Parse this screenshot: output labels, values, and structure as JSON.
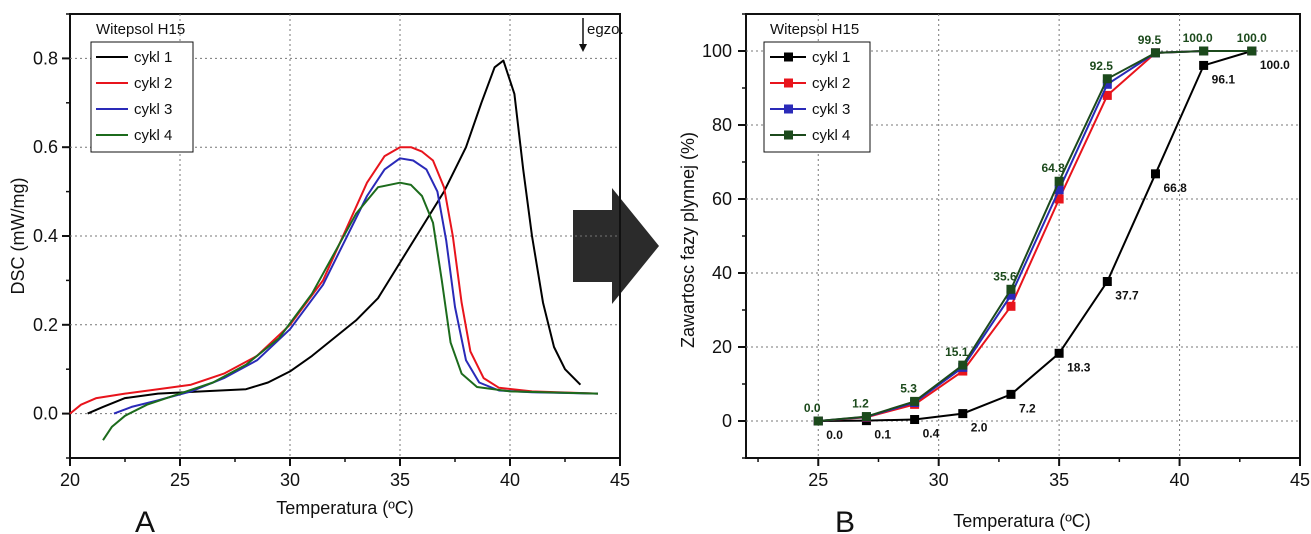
{
  "arrow_color": "#2b2b2b",
  "chart_data": [
    {
      "type": "line",
      "panel_label": "A",
      "xlabel": "Temperatura (ºC)",
      "ylabel": "DSC (mW/mg)",
      "xlim": [
        20,
        45
      ],
      "ylim": [
        -0.1,
        0.9
      ],
      "xticks": [
        "20",
        "25",
        "30",
        "35",
        "40",
        "45"
      ],
      "yticks": [
        "0.0",
        "0.2",
        "0.4",
        "0.6",
        "0.8"
      ],
      "grid": true,
      "legend_title": "Witepsol H15",
      "legend_position": "top-left",
      "annotation": "egzo.",
      "series": [
        {
          "name": "cykl 1",
          "color": "#000000",
          "points": [
            [
              20.8,
              0.0
            ],
            [
              21.5,
              0.015
            ],
            [
              22.5,
              0.035
            ],
            [
              24,
              0.045
            ],
            [
              26,
              0.05
            ],
            [
              28,
              0.055
            ],
            [
              29,
              0.07
            ],
            [
              30,
              0.095
            ],
            [
              31,
              0.13
            ],
            [
              32,
              0.17
            ],
            [
              33,
              0.21
            ],
            [
              34,
              0.26
            ],
            [
              35,
              0.34
            ],
            [
              36,
              0.42
            ],
            [
              37,
              0.5
            ],
            [
              38,
              0.6
            ],
            [
              38.7,
              0.7
            ],
            [
              39.3,
              0.78
            ],
            [
              39.7,
              0.795
            ],
            [
              40,
              0.75
            ],
            [
              40.2,
              0.72
            ],
            [
              40.6,
              0.55
            ],
            [
              41,
              0.4
            ],
            [
              41.5,
              0.25
            ],
            [
              42,
              0.15
            ],
            [
              42.5,
              0.1
            ],
            [
              43.2,
              0.065
            ]
          ]
        },
        {
          "name": "cykl 2",
          "color": "#e8141c",
          "points": [
            [
              20,
              0.0
            ],
            [
              20.5,
              0.02
            ],
            [
              21.2,
              0.035
            ],
            [
              22.5,
              0.045
            ],
            [
              24,
              0.055
            ],
            [
              25.5,
              0.065
            ],
            [
              27,
              0.09
            ],
            [
              28.5,
              0.13
            ],
            [
              30,
              0.2
            ],
            [
              31.5,
              0.3
            ],
            [
              32.5,
              0.41
            ],
            [
              33.5,
              0.52
            ],
            [
              34.3,
              0.58
            ],
            [
              35,
              0.6
            ],
            [
              35.5,
              0.6
            ],
            [
              36,
              0.59
            ],
            [
              36.5,
              0.57
            ],
            [
              37,
              0.51
            ],
            [
              37.4,
              0.4
            ],
            [
              37.8,
              0.25
            ],
            [
              38.2,
              0.14
            ],
            [
              38.8,
              0.08
            ],
            [
              39.5,
              0.058
            ],
            [
              41,
              0.05
            ],
            [
              44,
              0.045
            ]
          ]
        },
        {
          "name": "cykl 3",
          "color": "#2a2ab8",
          "points": [
            [
              22,
              0.0
            ],
            [
              22.8,
              0.015
            ],
            [
              24,
              0.03
            ],
            [
              25.5,
              0.05
            ],
            [
              27,
              0.08
            ],
            [
              28.5,
              0.12
            ],
            [
              30,
              0.19
            ],
            [
              31.5,
              0.29
            ],
            [
              32.5,
              0.39
            ],
            [
              33.5,
              0.49
            ],
            [
              34.3,
              0.55
            ],
            [
              35,
              0.575
            ],
            [
              35.6,
              0.57
            ],
            [
              36.2,
              0.55
            ],
            [
              36.7,
              0.5
            ],
            [
              37.1,
              0.39
            ],
            [
              37.5,
              0.24
            ],
            [
              38,
              0.12
            ],
            [
              38.6,
              0.07
            ],
            [
              39.5,
              0.052
            ],
            [
              41,
              0.048
            ],
            [
              44,
              0.045
            ]
          ]
        },
        {
          "name": "cykl 4",
          "color": "#1c6b1c",
          "points": [
            [
              21.5,
              -0.06
            ],
            [
              21.9,
              -0.03
            ],
            [
              22.5,
              -0.005
            ],
            [
              23.5,
              0.02
            ],
            [
              25,
              0.045
            ],
            [
              26.5,
              0.07
            ],
            [
              28,
              0.11
            ],
            [
              29.5,
              0.17
            ],
            [
              31,
              0.27
            ],
            [
              32,
              0.36
            ],
            [
              33,
              0.45
            ],
            [
              34,
              0.51
            ],
            [
              35,
              0.52
            ],
            [
              35.5,
              0.515
            ],
            [
              36,
              0.49
            ],
            [
              36.5,
              0.43
            ],
            [
              36.9,
              0.3
            ],
            [
              37.3,
              0.16
            ],
            [
              37.8,
              0.09
            ],
            [
              38.5,
              0.06
            ],
            [
              40,
              0.05
            ],
            [
              44,
              0.045
            ]
          ]
        }
      ]
    },
    {
      "type": "line",
      "panel_label": "B",
      "xlabel": "Temperatura (ºC)",
      "ylabel": "Zawartosc fazy plynnej (%)",
      "xlim": [
        22,
        45
      ],
      "ylim": [
        -10,
        110
      ],
      "xticks": [
        "25",
        "30",
        "35",
        "40",
        "45"
      ],
      "yticks": [
        "0",
        "20",
        "40",
        "60",
        "80",
        "100"
      ],
      "grid": true,
      "legend_title": "Witepsol H15",
      "legend_position": "top-left",
      "x": [
        25,
        27,
        29,
        31,
        33,
        35,
        37,
        39,
        41,
        43
      ],
      "series": [
        {
          "name": "cykl 1",
          "color": "#000000",
          "values": [
            0.0,
            0.1,
            0.4,
            2.0,
            7.2,
            18.3,
            37.7,
            66.8,
            96.1,
            100.0
          ],
          "labels": [
            "0.0",
            "0.1",
            "0.4",
            "2.0",
            "7.2",
            "18.3",
            "37.7",
            "66.8",
            "96.1",
            "100.0"
          ]
        },
        {
          "name": "cykl 2",
          "color": "#e8141c",
          "values": [
            0.0,
            1.0,
            4.5,
            13.5,
            31.0,
            60.0,
            88.0,
            99.5,
            100.0,
            100.0
          ]
        },
        {
          "name": "cykl 3",
          "color": "#2a2ab8",
          "values": [
            0.0,
            1.1,
            5.0,
            14.5,
            34.0,
            62.5,
            91.0,
            99.5,
            100.0,
            100.0
          ]
        },
        {
          "name": "cykl 4",
          "color": "#1c4a1c",
          "values": [
            0.0,
            1.2,
            5.3,
            15.1,
            35.6,
            64.8,
            92.5,
            99.5,
            100.0,
            100.0
          ],
          "labels": [
            "0.0",
            "1.2",
            "5.3",
            "15.1",
            "35.6",
            "64.8",
            "92.5",
            "99.5",
            "100.0",
            "100.0"
          ]
        }
      ]
    }
  ]
}
